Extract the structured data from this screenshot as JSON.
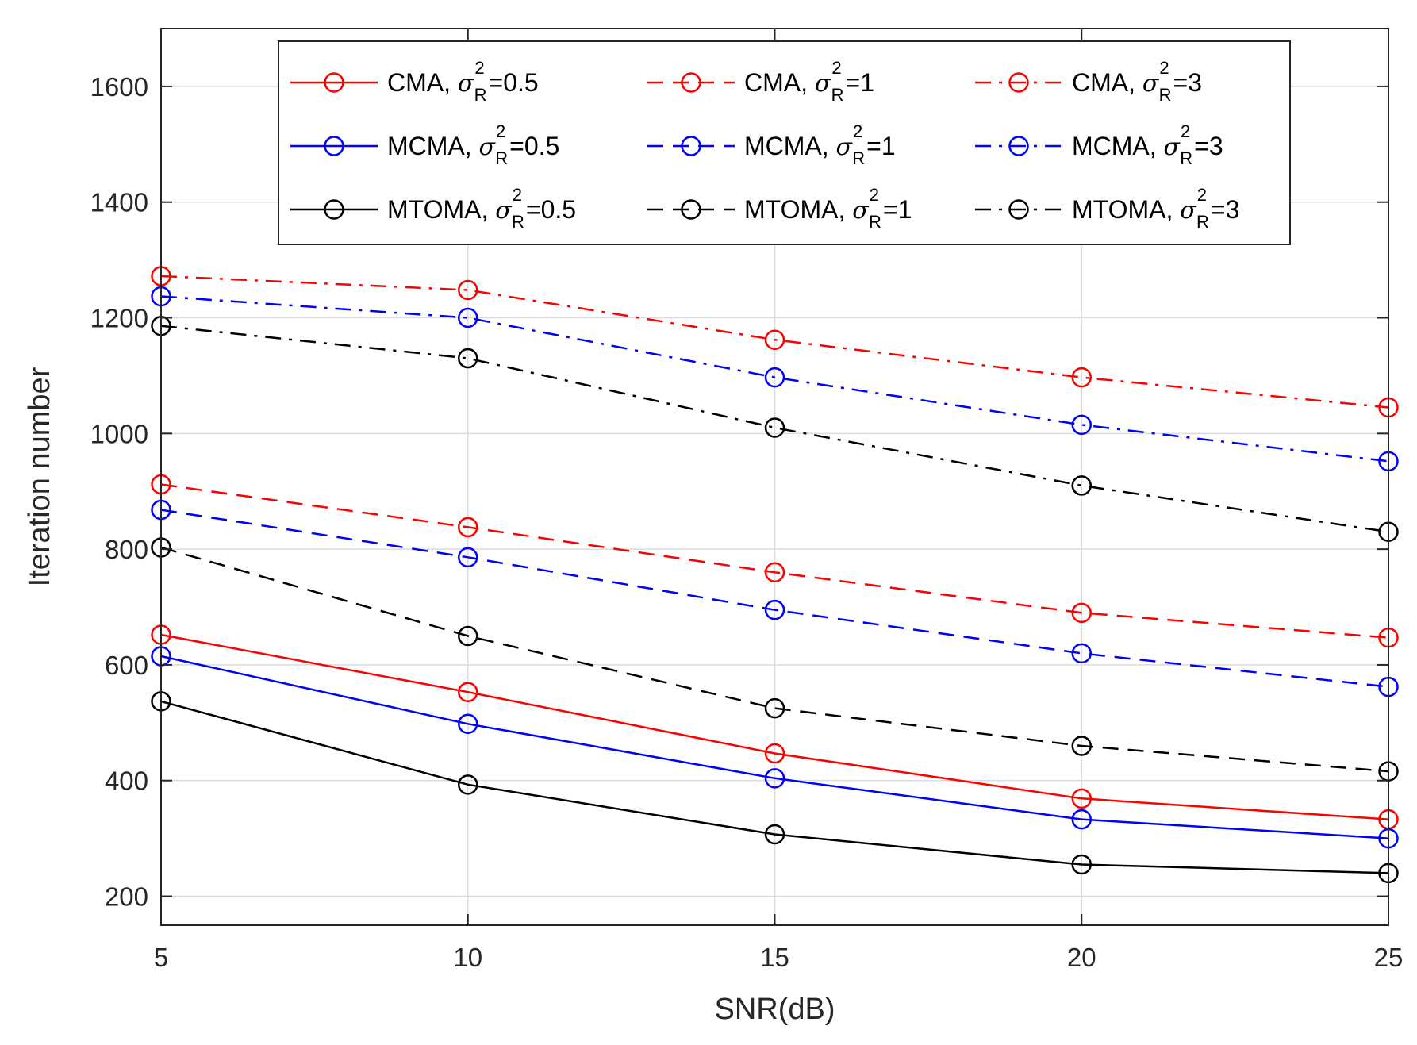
{
  "chart_data": {
    "type": "line",
    "title": "",
    "xlabel": "SNR(dB)",
    "ylabel": "Iteration number",
    "xlim": [
      5,
      25
    ],
    "ylim": [
      150,
      1700
    ],
    "x": [
      5,
      10,
      15,
      20,
      25
    ],
    "x_ticks": [
      5,
      10,
      15,
      20,
      25
    ],
    "y_ticks": [
      200,
      400,
      600,
      800,
      1000,
      1200,
      1400,
      1600
    ],
    "grid": true,
    "legend_position": "top",
    "colors": {
      "red": "#ff0000",
      "blue": "#0000ff",
      "black": "#000000"
    },
    "series": [
      {
        "algorithm": "CMA",
        "sigma_value": "0.5",
        "color": "#ff0000",
        "line_style": "solid",
        "marker": "circle",
        "values": [
          652,
          553,
          447,
          369,
          333
        ]
      },
      {
        "algorithm": "CMA",
        "sigma_value": "1",
        "color": "#ff0000",
        "line_style": "dashed",
        "marker": "circle",
        "values": [
          912,
          838,
          760,
          690,
          647
        ]
      },
      {
        "algorithm": "CMA",
        "sigma_value": "3",
        "color": "#ff0000",
        "line_style": "dashdot",
        "marker": "circle",
        "values": [
          1272,
          1248,
          1162,
          1097,
          1045
        ]
      },
      {
        "algorithm": "MCMA",
        "sigma_value": "0.5",
        "color": "#0000ff",
        "line_style": "solid",
        "marker": "circle",
        "values": [
          615,
          498,
          404,
          333,
          300
        ]
      },
      {
        "algorithm": "MCMA",
        "sigma_value": "1",
        "color": "#0000ff",
        "line_style": "dashed",
        "marker": "circle",
        "values": [
          868,
          786,
          695,
          620,
          562
        ]
      },
      {
        "algorithm": "MCMA",
        "sigma_value": "3",
        "color": "#0000ff",
        "line_style": "dashdot",
        "marker": "circle",
        "values": [
          1237,
          1200,
          1097,
          1015,
          952
        ]
      },
      {
        "algorithm": "MTOMA",
        "sigma_value": "0.5",
        "color": "#000000",
        "line_style": "solid",
        "marker": "circle",
        "values": [
          537,
          393,
          307,
          255,
          240
        ]
      },
      {
        "algorithm": "MTOMA",
        "sigma_value": "1",
        "color": "#000000",
        "line_style": "dashed",
        "marker": "circle",
        "values": [
          803,
          650,
          525,
          460,
          416
        ]
      },
      {
        "algorithm": "MTOMA",
        "sigma_value": "3",
        "color": "#000000",
        "line_style": "dashdot",
        "marker": "circle",
        "values": [
          1186,
          1130,
          1010,
          910,
          830
        ]
      }
    ]
  }
}
